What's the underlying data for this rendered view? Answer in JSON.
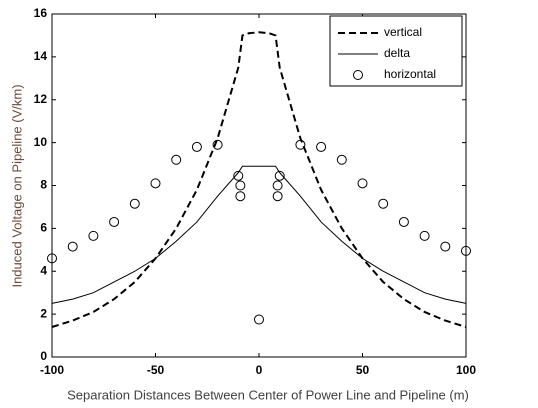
{
  "chart_data": {
    "type": "line",
    "x_label": "Separation Distances Between Center of Power Line and Pipeline (m)",
    "y_label": "Induced Voltage on Pipeline (V/km)",
    "x": [
      -100,
      -90,
      -80,
      -70,
      -60,
      -50,
      -40,
      -30,
      -20,
      -10,
      -8,
      -5,
      0,
      5,
      8,
      10,
      20,
      30,
      40,
      50,
      60,
      70,
      80,
      90,
      100
    ],
    "series": [
      {
        "name": "vertical",
        "color": "#000000",
        "style": "dashed",
        "values": [
          1.4,
          1.7,
          2.1,
          2.7,
          3.5,
          4.6,
          6.0,
          7.8,
          10.2,
          13.5,
          15.0,
          15.1,
          15.15,
          15.1,
          15.0,
          13.5,
          10.2,
          7.8,
          6.0,
          4.6,
          3.5,
          2.7,
          2.1,
          1.7,
          1.4
        ]
      },
      {
        "name": "delta",
        "color": "#000000",
        "style": "solid",
        "values": [
          2.5,
          2.7,
          3.0,
          3.5,
          4.0,
          4.6,
          5.4,
          6.3,
          7.5,
          8.6,
          8.9,
          8.9,
          8.9,
          8.9,
          8.9,
          8.6,
          7.5,
          6.3,
          5.4,
          4.6,
          4.0,
          3.5,
          3.0,
          2.7,
          2.5
        ]
      },
      {
        "name": "horizontal",
        "color": "#000000",
        "style": "markers",
        "x": [
          -100,
          -90,
          -80,
          -70,
          -60,
          -50,
          -40,
          -30,
          -20,
          -10,
          -9,
          -9,
          0,
          9,
          9,
          10,
          20,
          30,
          40,
          50,
          60,
          70,
          80,
          90,
          100
        ],
        "values": [
          4.6,
          5.15,
          5.65,
          6.3,
          7.15,
          8.1,
          9.2,
          9.8,
          9.9,
          8.45,
          8.0,
          7.5,
          1.75,
          7.5,
          8.0,
          8.45,
          9.9,
          9.8,
          9.2,
          8.1,
          7.15,
          6.3,
          5.65,
          5.15,
          4.95
        ]
      }
    ],
    "xlim": [
      -100,
      100
    ],
    "xticks": [
      -100,
      -50,
      0,
      50,
      100
    ],
    "ylim": [
      0,
      16
    ],
    "yticks": [
      0,
      2,
      4,
      6,
      8,
      10,
      12,
      14,
      16
    ],
    "legend": "upper right"
  }
}
